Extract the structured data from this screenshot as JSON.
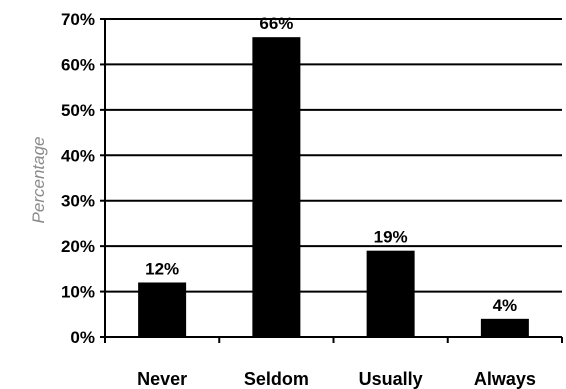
{
  "chart_data": {
    "type": "bar",
    "title": "",
    "xlabel": "",
    "ylabel": "Percentage",
    "categories": [
      "Never",
      "Seldom",
      "Usually",
      "Always"
    ],
    "values": [
      12,
      66,
      19,
      4
    ],
    "value_labels": [
      "12%",
      "66%",
      "19%",
      "4%"
    ],
    "ylim": [
      0,
      70
    ],
    "y_ticks": [
      0,
      10,
      20,
      30,
      40,
      50,
      60,
      70
    ],
    "y_tick_labels": [
      "0%",
      "10%",
      "20%",
      "30%",
      "40%",
      "50%",
      "60%",
      "70%"
    ],
    "grid": true,
    "legend": "none",
    "bar_color": "#000000",
    "grid_color": "#000000"
  }
}
